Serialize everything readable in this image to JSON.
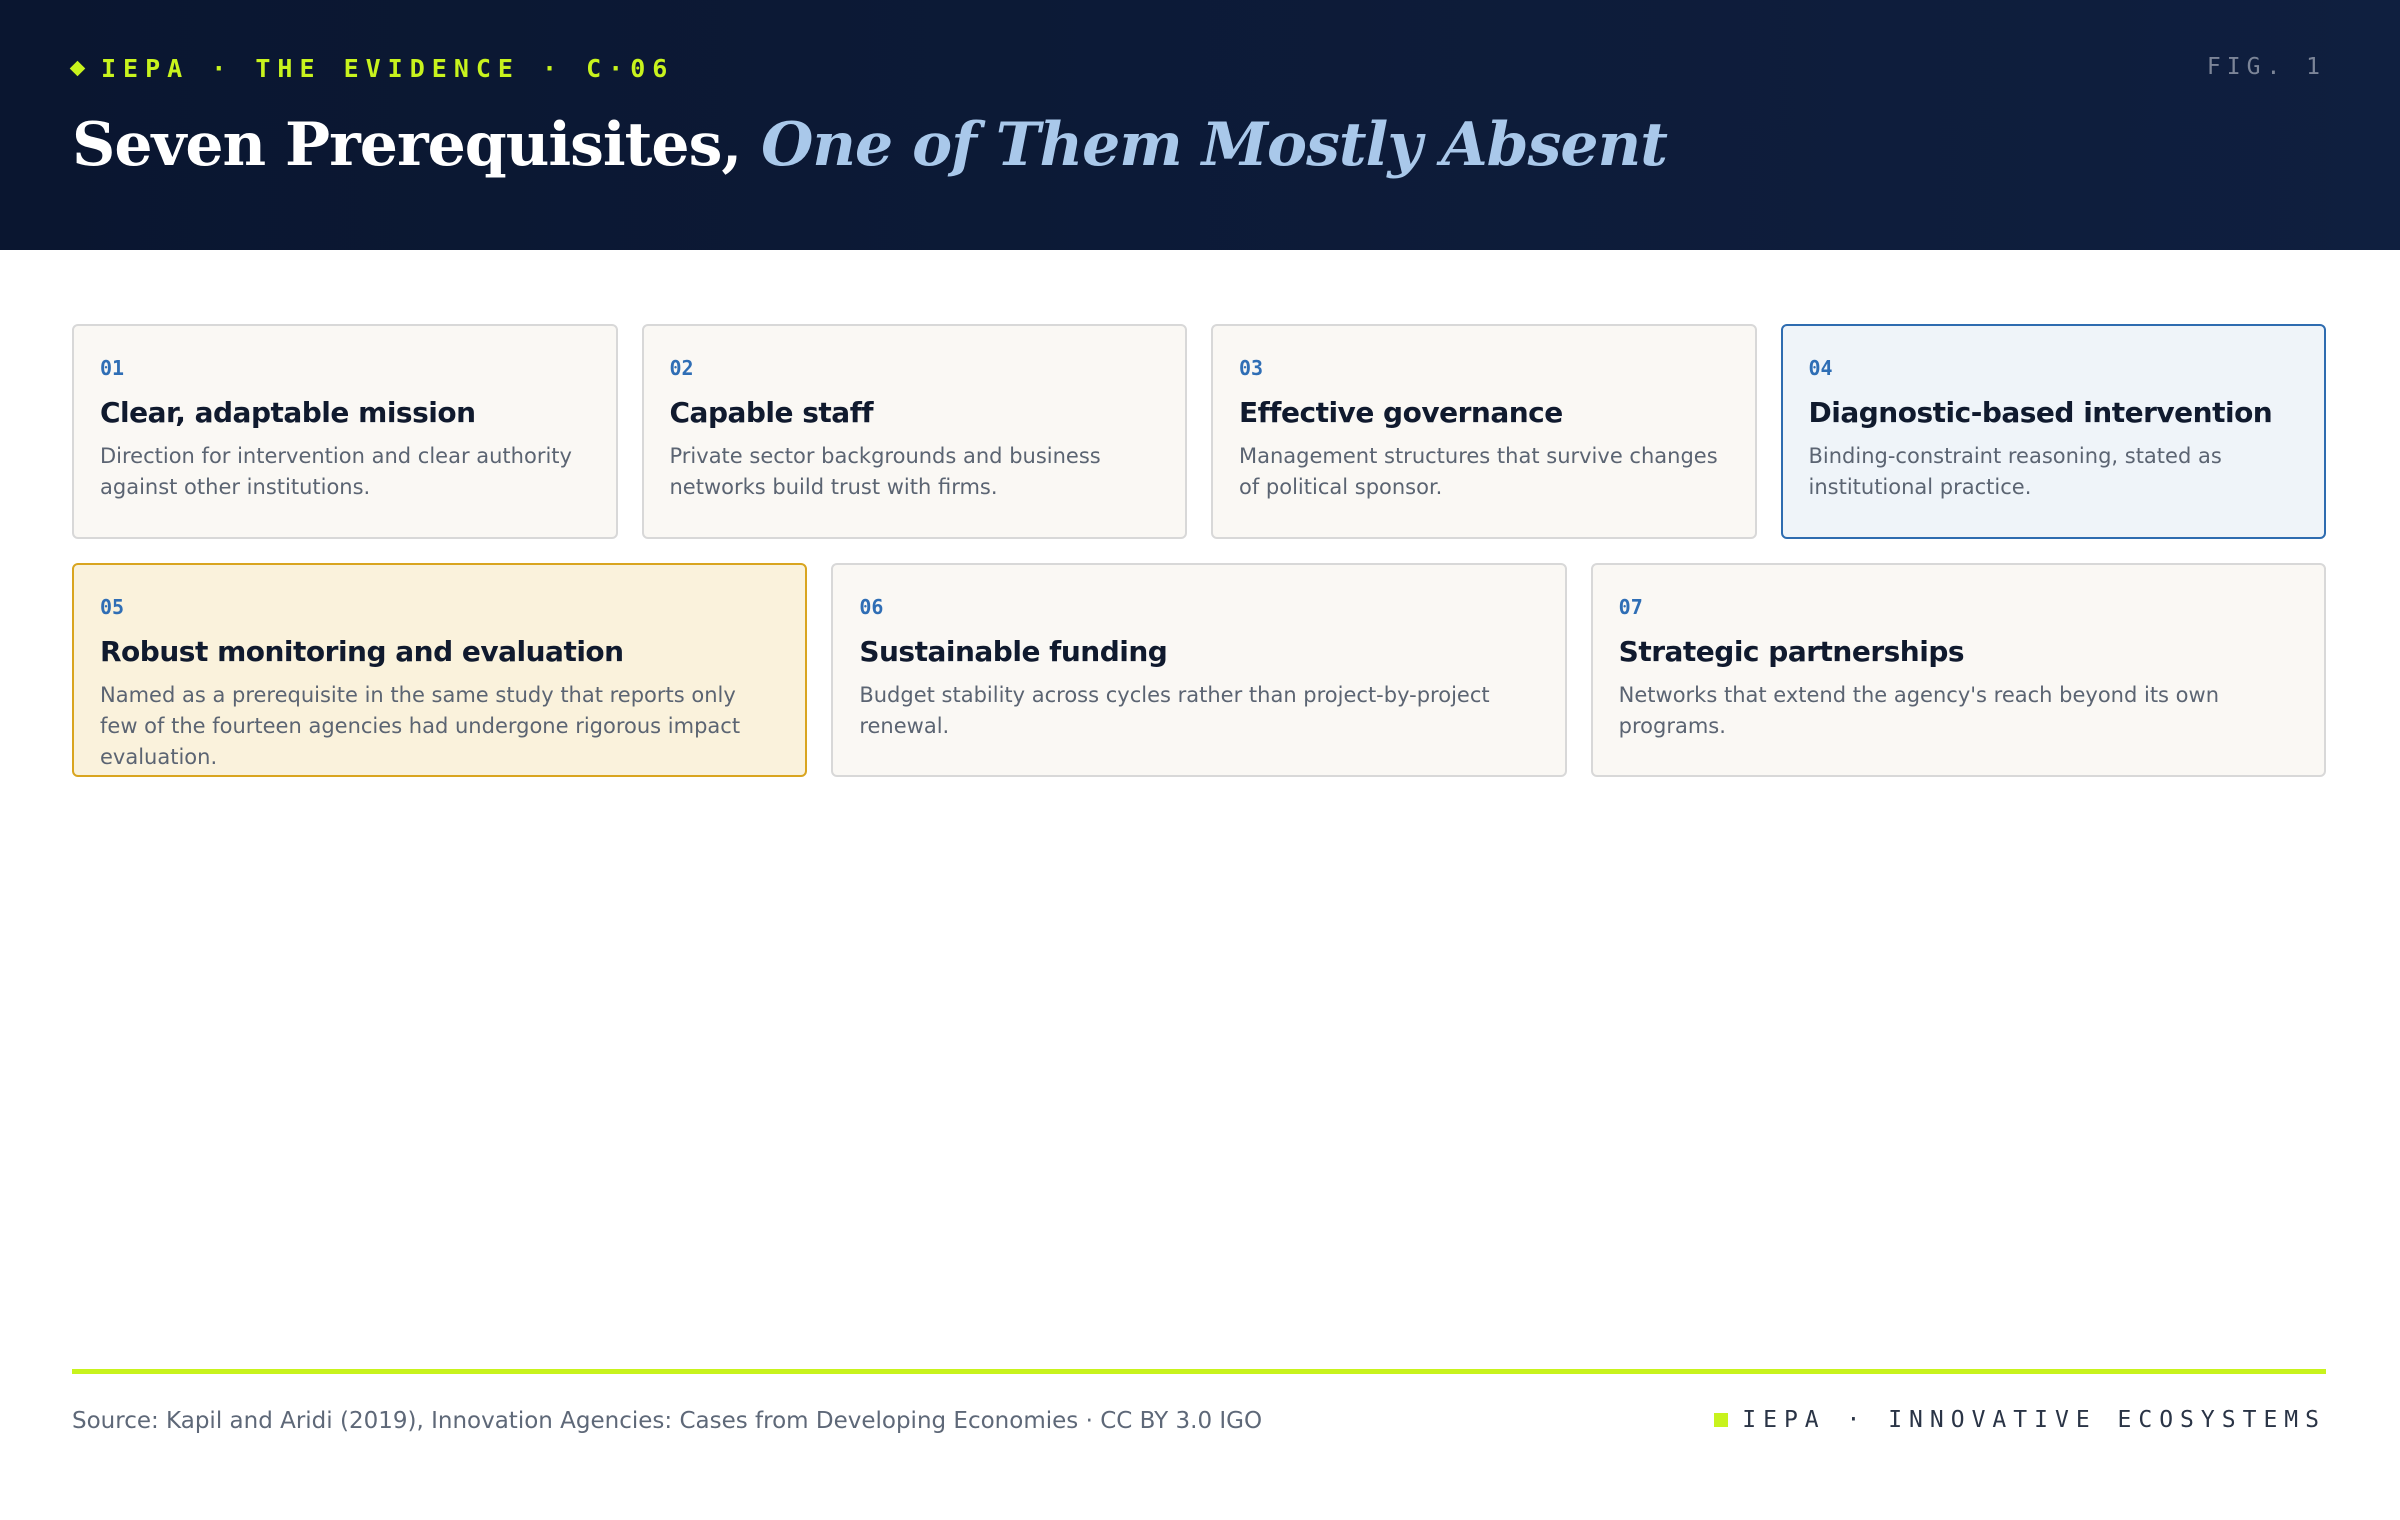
{
  "header": {
    "kicker": "IEPA · THE EVIDENCE · C·06",
    "fig": "FIG. 1",
    "title_main": "Seven Prerequisites,",
    "title_em": "One of Them Mostly Absent"
  },
  "cards": [
    {
      "number": "01",
      "title": "Clear, adaptable mission",
      "text": "Direction for intervention and clear authority against other institutions."
    },
    {
      "number": "02",
      "title": "Capable staff",
      "text": "Private sector backgrounds and business networks build trust with firms."
    },
    {
      "number": "03",
      "title": "Effective governance",
      "text": "Management structures that survive changes of political sponsor."
    },
    {
      "number": "04",
      "title": "Diagnostic-based intervention",
      "text": "Binding-constraint reasoning, stated as institutional practice."
    },
    {
      "number": "05",
      "title": "Robust monitoring and evaluation",
      "text": "Named as a prerequisite in the same study that reports only few of the fourteen agencies had undergone rigorous impact evaluation."
    },
    {
      "number": "06",
      "title": "Sustainable funding",
      "text": "Budget stability across cycles rather than project-by-project renewal."
    },
    {
      "number": "07",
      "title": "Strategic partnerships",
      "text": "Networks that extend the agency's reach beyond its own programs."
    }
  ],
  "footer": {
    "source": "Source: Kapil and Aridi (2019), Innovation Agencies: Cases from Developing Economies · CC BY 3.0 IGO",
    "brand": "IEPA · INNOVATIVE ECOSYSTEMS"
  }
}
